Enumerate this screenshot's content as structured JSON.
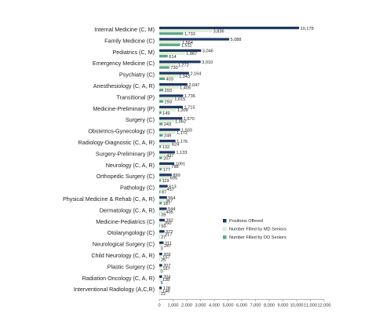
{
  "chart_data": {
    "type": "bar",
    "orientation": "horizontal",
    "xlim": [
      0,
      12000
    ],
    "x_ticks": [
      "0",
      "1,000",
      "2,000",
      "3,000",
      "4,000",
      "5,000",
      "6,000",
      "7,000",
      "8,000",
      "9,000",
      "10,000",
      "11,000",
      "12,000"
    ],
    "x_tick_values": [
      0,
      1000,
      2000,
      3000,
      4000,
      5000,
      6000,
      7000,
      8000,
      9000,
      10000,
      11000,
      12000
    ],
    "grid": false,
    "legend_position": "lower-right",
    "categories": [
      "Internal Medicine (C, M)",
      "Family Medicine (C)",
      "Pediatrics (C, M)",
      "Emergency Medicine (C)",
      "Psychiatry (C)",
      "Anesthesiology (C, A, R)",
      "Transitional (P)",
      "Medicine-Preliminary (P)",
      "Surgery (C)",
      "Obstetrics-Gynecology (C)",
      "Radiology-Diagnostic (C, A, R)",
      "Surgery-Preliminary (P)",
      "Neurology (C, A, R)",
      "Orthopedic Surgery (C)",
      "Pathology (C)",
      "Physical Medicine & Rehab (C, A, R)",
      "Dermatology (C, A, R)",
      "Medicine-Pediatrics (C)",
      "Otolaryngology (C)",
      "Neurological Surgery (C)",
      "Child Neurology (C, A, R)",
      "Plastic Surgery (C)",
      "Radiation Oncology (C, A, R)",
      "Interventional Radiology (A,C,R)"
    ],
    "series": [
      {
        "name": "Positions Offered",
        "color": "#1f3864",
        "values": [
          10178,
          5088,
          3046,
          3010,
          2164,
          2047,
          1736,
          1715,
          1670,
          1503,
          1176,
          1133,
          1091,
          899,
          613,
          554,
          544,
          392,
          372,
          311,
          209,
          207,
          204,
          178
        ],
        "labels": [
          "10,178",
          "5,088",
          "3,046",
          "3,010",
          "2,164",
          "2,047",
          "1,736",
          "1,715",
          "1,670",
          "1,503",
          "1,176",
          "1,133",
          "1091",
          "899",
          "613",
          "554",
          "544",
          "392",
          "372",
          "311",
          "209",
          "207",
          "204",
          "178"
        ]
      },
      {
        "name": "Number Filled by MD Seniors",
        "color": "#e2f0d9",
        "values": [
          3836,
          1564,
          1867,
          1272,
          1343,
          1405,
          1015,
          1209,
          1062,
          1172,
          824,
          437,
          788,
          695,
          457,
          367,
          405,
          260,
          317,
          247,
          157,
          167,
          138,
          148
        ],
        "labels": [
          "3,836",
          "1,564",
          "1,867",
          "1,272",
          "1,343",
          "1,405",
          "1,015",
          "1,209",
          "1,062",
          "1,172",
          "824",
          "437",
          "788",
          "695",
          "457",
          "367",
          "405",
          "260",
          "317",
          "247",
          "157",
          "167",
          "138",
          "148"
        ]
      },
      {
        "name": "Number Filled by DO Seniors",
        "color": "#5ba58a",
        "values": [
          1733,
          1511,
          614,
          730,
          403,
          293,
          293,
          149,
          243,
          249,
          132,
          207,
          177,
          119,
          87,
          187,
          39,
          50,
          27,
          3,
          25,
          0,
          6,
          22
        ],
        "labels": [
          "1,733",
          "1,511",
          "614",
          "730",
          "403",
          "293",
          "293",
          "149",
          "243",
          "249",
          "132",
          "207",
          "177",
          "119",
          "87",
          "187",
          "39",
          "50",
          "27",
          "3",
          "25",
          "0",
          "6",
          "22"
        ]
      }
    ]
  }
}
